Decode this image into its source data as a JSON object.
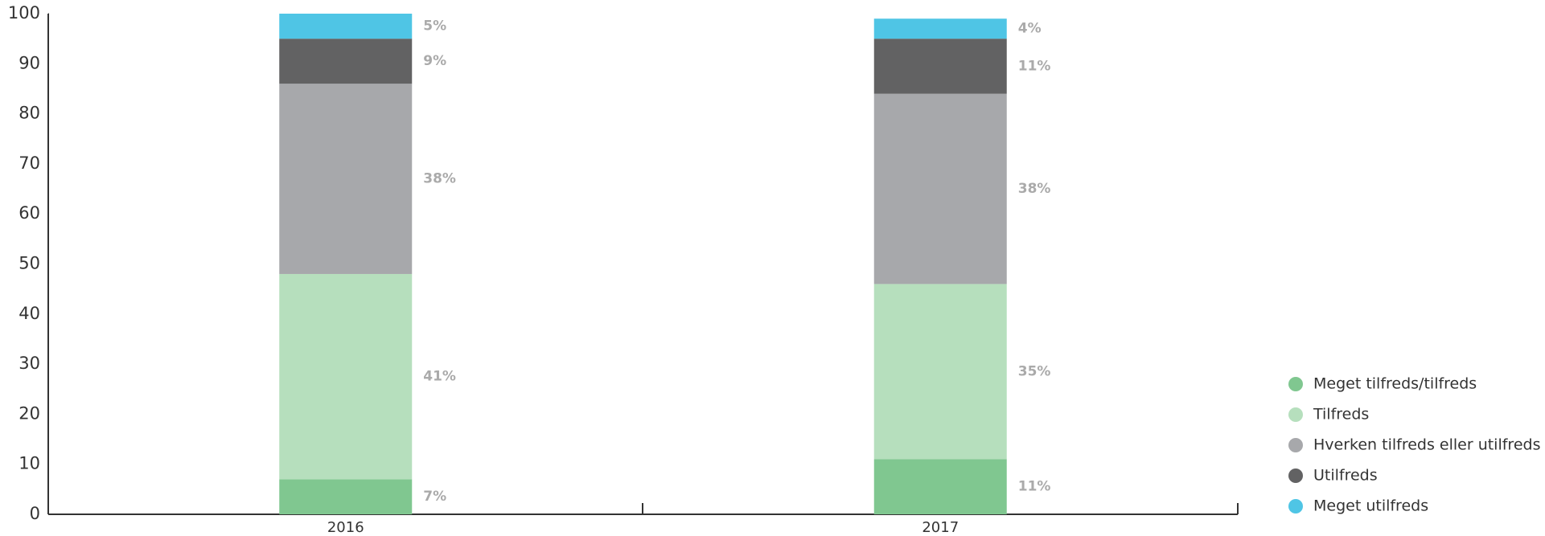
{
  "chart_data": {
    "type": "stacked_bar",
    "categories": [
      "2016",
      "2017"
    ],
    "series": [
      {
        "name": "Meget tilfreds/tilfreds",
        "color": "#80c790",
        "values": [
          7,
          11
        ],
        "value_labels": [
          "7%",
          "11%"
        ]
      },
      {
        "name": "Tilfreds",
        "color": "#b6dfbd",
        "values": [
          41,
          35
        ],
        "value_labels": [
          "41%",
          "35%"
        ]
      },
      {
        "name": "Hverken tilfreds eller utilfreds",
        "color": "#a7a8ab",
        "values": [
          38,
          38
        ],
        "value_labels": [
          "38%",
          "38%"
        ]
      },
      {
        "name": "Utilfreds",
        "color": "#626263",
        "values": [
          9,
          11
        ],
        "value_labels": [
          "9%",
          "11%"
        ]
      },
      {
        "name": "Meget utilfreds",
        "color": "#4fc5e5",
        "values": [
          5,
          4
        ],
        "value_labels": [
          "5%",
          "4%"
        ]
      }
    ],
    "ylim": [
      0,
      100
    ],
    "yticks": [
      0,
      10,
      20,
      30,
      40,
      50,
      60,
      70,
      80,
      90,
      100
    ],
    "grid": false,
    "legend": "right"
  }
}
